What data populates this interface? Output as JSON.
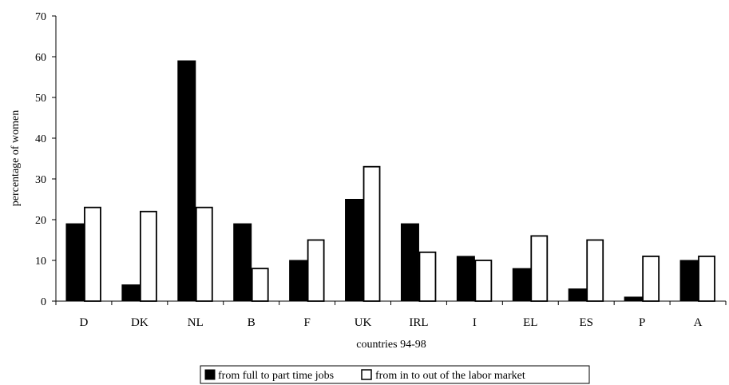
{
  "chart_data": {
    "type": "bar",
    "title": "",
    "xlabel": "countries 94-98",
    "ylabel": "percentage of women",
    "ylim": [
      0,
      70
    ],
    "yticks": [
      0,
      10,
      20,
      30,
      40,
      50,
      60,
      70
    ],
    "grid": false,
    "legend_position": "bottom",
    "categories": [
      "D",
      "DK",
      "NL",
      "B",
      "F",
      "UK",
      "IRL",
      "I",
      "EL",
      "ES",
      "P",
      "A"
    ],
    "series": [
      {
        "name": "from full to part time jobs",
        "fill": "#000000",
        "values": [
          19,
          4,
          59,
          19,
          10,
          25,
          19,
          11,
          8,
          3,
          1,
          10
        ]
      },
      {
        "name": "from in to out of the labor market",
        "fill": "#ffffff",
        "values": [
          23,
          22,
          23,
          8,
          15,
          33,
          12,
          10,
          16,
          15,
          11,
          11
        ]
      }
    ]
  }
}
